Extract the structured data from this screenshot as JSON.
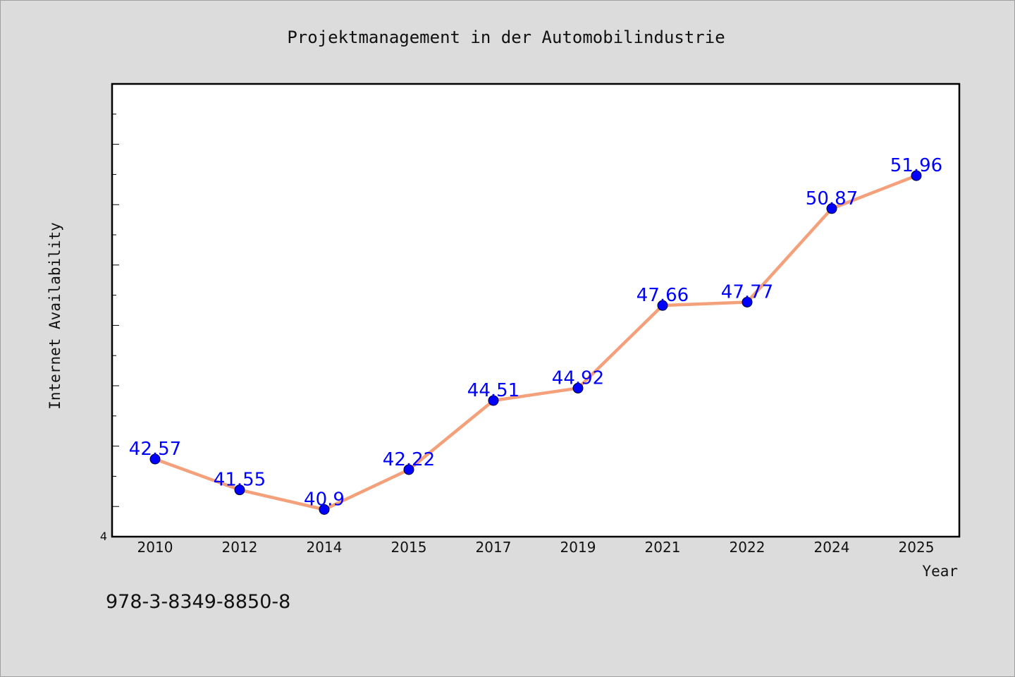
{
  "chart_data": {
    "type": "line",
    "title": "Projektmanagement in der Automobilindustrie",
    "xlabel": "Year",
    "ylabel": "Internet Availability",
    "categories": [
      "2010",
      "2012",
      "2014",
      "2015",
      "2017",
      "2019",
      "2021",
      "2022",
      "2024",
      "2025"
    ],
    "series": [
      {
        "values": [
          42.57,
          41.55,
          40.9,
          42.22,
          44.51,
          44.92,
          47.66,
          47.77,
          50.87,
          51.96
        ]
      }
    ],
    "data_labels": [
      "42.57",
      "41.55",
      "40.9",
      "42.22",
      "44.51",
      "44.92",
      "47.66",
      "47.77",
      "50.87",
      "51.96"
    ],
    "ylim": [
      40,
      55
    ],
    "y_min_label": "4",
    "grid": false,
    "line_color": "#f4a07a",
    "marker_color": "#0000ff",
    "label_color": "#0000ff"
  },
  "footer": {
    "isbn": "978-3-8349-8850-8"
  }
}
